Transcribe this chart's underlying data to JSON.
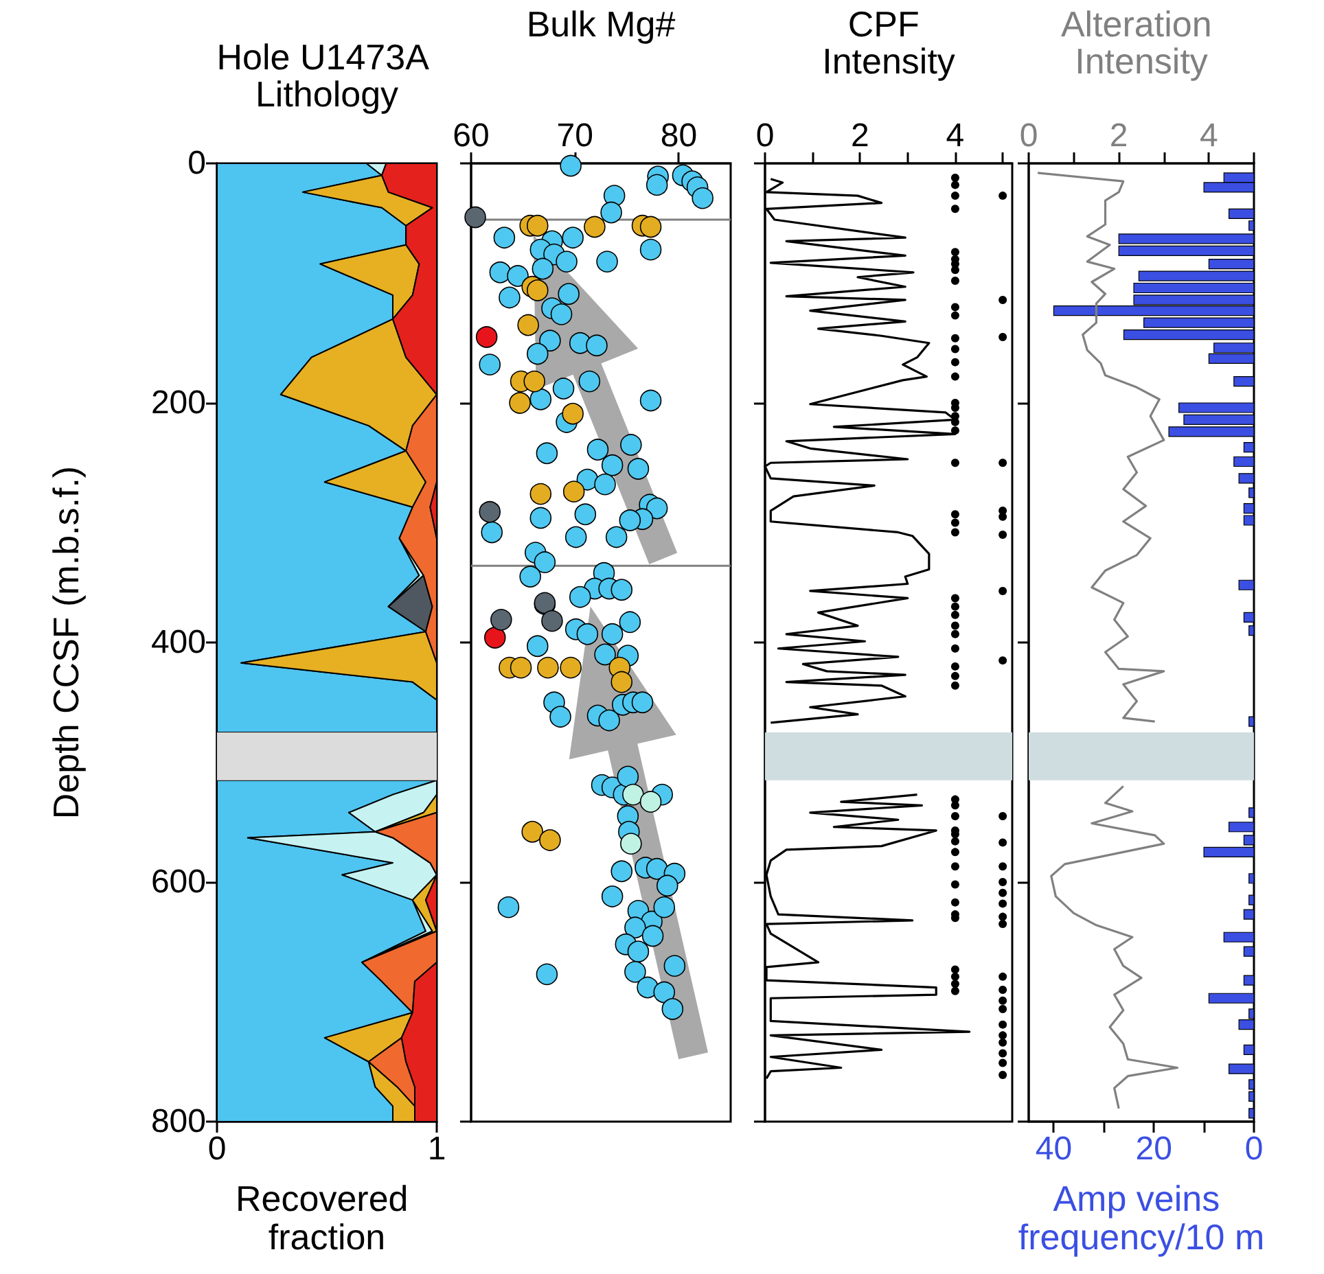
{
  "chart_data": [
    {
      "type": "area",
      "stacked": true,
      "orientation": "horizontal",
      "title": "Hole U1473A Lithology",
      "xlabel": "Recovered fraction",
      "ylabel": "Depth CCSF (m.b.s.f.)",
      "xlim": [
        0,
        1
      ],
      "xticks": [
        0,
        1
      ],
      "ylim": [
        800,
        0
      ],
      "yticks": [
        0,
        200,
        400,
        600,
        800
      ],
      "x": [
        0,
        10,
        24,
        37,
        52,
        68,
        84,
        110,
        130,
        162,
        193,
        219,
        240,
        266,
        287,
        313,
        344,
        370,
        391,
        417,
        433,
        448,
        475,
        495,
        515,
        527,
        542,
        558,
        563,
        584,
        594,
        615,
        641,
        667,
        683,
        709,
        730,
        750,
        771,
        787,
        800
      ],
      "series": [
        {
          "color": "#4ec4f0",
          "values": [
            0.68,
            0.75,
            0.39,
            0.75,
            0.86,
            0.86,
            0.47,
            0.8,
            0.8,
            0.43,
            0.29,
            0.69,
            0.86,
            0.49,
            0.89,
            0.83,
            0.92,
            0.78,
            0.95,
            0.11,
            0.89,
            1,
            1,
            null,
            1,
            0.8,
            0.6,
            0.72,
            0.14,
            0.8,
            0.57,
            0.89,
            0.95,
            0.66,
            0.75,
            0.89,
            0.49,
            0.69,
            0.72,
            0.8,
            0.8
          ]
        },
        {
          "color": "#c6f2f2",
          "values": [
            0.09,
            0,
            null,
            null,
            null,
            null,
            null,
            null,
            null,
            null,
            null,
            null,
            null,
            null,
            null,
            0,
            0.02,
            0,
            null,
            null,
            null,
            null,
            null,
            null,
            0,
            0.2,
            0.34,
            0,
            0.66,
            0.17,
            0.43,
            0,
            0.03,
            0,
            null,
            null,
            null,
            null,
            null,
            null,
            null
          ]
        },
        {
          "color": "#4f5860",
          "values": [
            null,
            null,
            null,
            null,
            null,
            null,
            null,
            null,
            null,
            null,
            null,
            null,
            null,
            null,
            null,
            null,
            0,
            0.2,
            0,
            null,
            null,
            null,
            null,
            null,
            null,
            null,
            null,
            null,
            null,
            null,
            null,
            null,
            null,
            null,
            null,
            null,
            null,
            null,
            null,
            null,
            null
          ]
        },
        {
          "color": "#e6b022",
          "values": [
            null,
            0,
            0.39,
            0.23,
            0,
            0,
            0.45,
            0.09,
            0,
            0.43,
            0.71,
            0.2,
            0,
            0.46,
            0,
            null,
            null,
            null,
            0,
            0.89,
            0.11,
            0,
            null,
            null,
            null,
            0,
            0.06,
            0,
            null,
            null,
            0,
            0.06,
            0.02,
            0,
            null,
            0,
            0.35,
            0,
            0.1,
            0.1,
            0.1
          ]
        },
        {
          "color": "#f0692f",
          "values": [
            null,
            null,
            null,
            null,
            null,
            null,
            null,
            null,
            null,
            null,
            0,
            0.11,
            0.14,
            0.05,
            0.08,
            0.17,
            0.06,
            0.02,
            0.05,
            0,
            null,
            null,
            null,
            null,
            null,
            null,
            0,
            0.28,
            0.2,
            0.03,
            0,
            null,
            0,
            0.34,
            0.15,
            0,
            0,
            0.17,
            0.08,
            0,
            null
          ]
        },
        {
          "color": "#e5211d",
          "values": [
            0.23,
            0.25,
            0.22,
            0.02,
            0.14,
            0.14,
            0.08,
            0.11,
            0.2,
            0.14,
            0,
            null,
            null,
            0,
            0.03,
            0,
            null,
            null,
            null,
            null,
            null,
            null,
            null,
            null,
            null,
            null,
            null,
            null,
            null,
            null,
            0,
            0.05,
            0,
            0,
            0.1,
            0.11,
            0.16,
            0.14,
            0.1,
            0.1,
            0.1
          ]
        }
      ],
      "bands": [
        {
          "axis": "y",
          "from": 475,
          "to": 515,
          "color": "#dcdcdc"
        }
      ]
    },
    {
      "type": "scatter",
      "orientation": "horizontal",
      "title": "Bulk Mg#",
      "x2lim": [
        60,
        85
      ],
      "x2ticks": [
        60,
        70,
        80
      ],
      "ylim": [
        800,
        0
      ],
      "yticks": [
        0,
        200,
        400,
        600,
        800
      ],
      "tick_labels": "x",
      "marker": "circle",
      "series": [
        {
          "color": "#4ec8f0",
          "axis": "x2",
          "x": [
            2,
            11,
            10,
            15,
            20,
            29,
            18,
            27,
            41,
            62,
            65,
            62,
            72,
            82,
            76,
            82,
            72,
            91,
            94,
            112,
            88,
            109,
            121,
            126,
            150,
            152,
            148,
            159,
            168,
            182,
            188,
            197,
            198,
            216,
            242,
            239,
            235,
            255,
            252,
            264,
            268,
            285,
            288,
            297,
            298,
            308,
            296,
            293,
            312,
            312,
            325,
            333,
            345,
            342,
            355,
            362,
            355,
            356,
            368,
            383,
            389,
            393,
            393,
            410,
            411,
            403,
            450,
            462,
            461,
            465,
            452,
            450,
            450,
            519,
            521,
            527,
            527,
            545,
            558,
            591,
            588,
            589,
            593,
            603,
            612,
            624,
            633,
            621,
            638,
            645,
            652,
            658,
            670,
            675,
            688,
            692,
            706,
            621,
            677,
            512
          ],
          "values": [
            69.6,
            78.0,
            80.4,
            81.3,
            81.8,
            82.3,
            77.9,
            73.8,
            73.5,
            63.2,
            67.8,
            69.8,
            66.7,
            73.1,
            68.0,
            69.2,
            77.3,
            62.8,
            64.5,
            63.7,
            66.9,
            69.4,
            67.8,
            68.7,
            70.5,
            72.1,
            67.6,
            66.4,
            61.8,
            71.4,
            68.9,
            66.7,
            77.3,
            69.2,
            67.3,
            72.2,
            75.4,
            76.1,
            73.6,
            71.2,
            72.9,
            77.2,
            77.9,
            76.5,
            75.3,
            62.0,
            66.7,
            71.0,
            70.1,
            74.0,
            66.2,
            67.1,
            65.7,
            72.8,
            71.9,
            70.5,
            73.3,
            74.5,
            67.1,
            75.3,
            70.1,
            71.2,
            73.6,
            72.9,
            75.1,
            66.4,
            68.0,
            68.6,
            72.2,
            73.3,
            74.6,
            75.6,
            76.5,
            72.6,
            73.6,
            74.7,
            78.4,
            75.1,
            75.2,
            74.5,
            76.8,
            77.9,
            79.6,
            78.9,
            73.6,
            76.1,
            77.4,
            78.6,
            75.8,
            77.5,
            74.9,
            76.1,
            79.6,
            75.8,
            77.0,
            78.6,
            79.4,
            63.6,
            67.3,
            75.1
          ]
        },
        {
          "color": "#e4ad21",
          "axis": "x2",
          "x": [
            52,
            52,
            53,
            52,
            53,
            103,
            106,
            135,
            182,
            182,
            200,
            209,
            276,
            274,
            421,
            421,
            421,
            421,
            421,
            433,
            558,
            565
          ],
          "values": [
            65.7,
            66.4,
            71.9,
            76.5,
            77.3,
            65.9,
            66.4,
            65.5,
            64.8,
            66.1,
            64.7,
            69.8,
            66.7,
            69.9,
            63.7,
            64.8,
            67.4,
            69.6,
            74.3,
            74.5,
            65.9,
            67.6
          ]
        },
        {
          "color": "#e8141c",
          "axis": "x2",
          "x": [
            145,
            396
          ],
          "values": [
            61.5,
            62.3
          ]
        },
        {
          "color": "#5a6670",
          "axis": "x2",
          "x": [
            45,
            291,
            367,
            382,
            381
          ],
          "values": [
            60.4,
            61.8,
            67.1,
            67.8,
            62.9
          ]
        },
        {
          "color": "#bff2e2",
          "axis": "x2",
          "x": [
            527,
            533,
            568
          ],
          "values": [
            75.6,
            77.3,
            75.4
          ]
        }
      ],
      "ref_lines": [
        {
          "axis": "y",
          "value": 47,
          "color": "#808080"
        },
        {
          "axis": "y",
          "value": 336,
          "color": "#808080"
        }
      ]
    },
    {
      "type": "line",
      "orientation": "horizontal",
      "title": "CPF Intensity",
      "x2lim": [
        0,
        5.2
      ],
      "x2ticks": [
        0,
        {
          "value": 1,
          "label": null
        },
        2,
        {
          "value": 3,
          "label": null
        },
        4,
        {
          "value": 5,
          "label": null
        }
      ],
      "ylim": [
        800,
        0
      ],
      "yticks": [
        0,
        200,
        400,
        600,
        800
      ],
      "tick_labels": "x",
      "series": [
        {
          "color": "#000000",
          "axis": "x2",
          "marker": "none",
          "x": [
            13,
            16,
            24,
            27,
            33,
            38,
            47,
            62,
            65,
            77,
            83,
            91,
            95,
            103,
            111,
            114,
            123,
            132,
            138,
            144,
            150,
            162,
            168,
            178,
            181,
            201,
            208,
            214,
            220,
            226,
            232,
            238,
            247,
            250,
            253,
            263,
            269,
            278,
            290,
            299,
            308,
            311,
            326,
            339,
            345,
            351,
            357,
            363,
            375,
            386,
            393,
            399,
            405,
            412,
            418,
            424,
            427,
            433,
            436,
            445,
            454,
            460,
            467,
            495,
            527,
            533,
            536,
            542,
            548,
            554,
            557,
            570,
            573,
            582,
            594,
            612,
            627,
            632,
            635,
            643,
            667,
            671,
            682,
            688,
            694,
            697,
            716,
            725,
            728,
            740,
            746,
            755,
            758,
            764
          ],
          "values": [
            0.12,
            0.37,
            0.03,
            1.95,
            2.45,
            0.03,
            0.2,
            2.95,
            0.45,
            2.95,
            0.12,
            3.12,
            1.95,
            2.95,
            0.45,
            2.95,
            0.95,
            2.95,
            1.12,
            2.45,
            3.45,
            3.2,
            2.9,
            3.4,
            2.9,
            0.95,
            3.8,
            4.0,
            1.45,
            4.0,
            0.45,
            0.95,
            3.0,
            0.12,
            0,
            0.12,
            2.3,
            0.6,
            0.12,
            0.12,
            2.8,
            3.1,
            3.45,
            3.45,
            2.95,
            3.0,
            0.95,
            3.0,
            1.12,
            1.95,
            0.45,
            2.1,
            0.28,
            2.8,
            0.8,
            1.3,
            2.95,
            0.45,
            2.45,
            2.95,
            0.95,
            1.95,
            0.12,
            null,
            3.2,
            1.6,
            3.3,
            0.95,
            2.8,
            1.45,
            3.6,
            2.45,
            0.45,
            0.12,
            0.03,
            0.12,
            0.28,
            3.1,
            0.03,
            0.12,
            1.12,
            0.03,
            0.03,
            3.6,
            3.6,
            0.12,
            0.12,
            4.3,
            0.12,
            2.45,
            0.12,
            1.6,
            0.12,
            0.03
          ]
        },
        {
          "type": "scatter",
          "color": "#000000",
          "axis": "x2",
          "marker": "circle",
          "x": [
            12,
            18,
            27,
            38,
            74,
            80,
            84,
            89,
            98,
            120,
            127,
            146,
            155,
            166,
            178,
            200,
            204,
            211,
            216,
            223,
            250,
            293,
            300,
            308,
            363,
            370,
            377,
            386,
            393,
            405,
            420,
            428,
            436,
            531,
            536,
            545,
            557,
            560,
            566,
            575,
            587,
            602,
            617,
            627,
            630,
            673,
            679,
            685,
            691
          ],
          "values": [
            4,
            4,
            4,
            4,
            4,
            4,
            4,
            4,
            4,
            4,
            4,
            4,
            4,
            4,
            4,
            4,
            4,
            4,
            4,
            4,
            4,
            4,
            4,
            4,
            4,
            4,
            4,
            4,
            4,
            4,
            4,
            4,
            4,
            4,
            4,
            4,
            4,
            4,
            4,
            4,
            4,
            4,
            4,
            4,
            4,
            4,
            4,
            4,
            4
          ]
        },
        {
          "type": "scatter",
          "color": "#000000",
          "axis": "x2",
          "marker": "circle",
          "x": [
            27,
            114,
            145,
            250,
            290,
            295,
            310,
            357,
            415,
            545,
            567,
            587,
            600,
            609,
            618,
            629,
            635,
            679,
            690,
            699,
            706,
            719,
            728,
            734,
            743,
            751,
            761
          ],
          "values": [
            5,
            5,
            5,
            5,
            5,
            5,
            5,
            5,
            5,
            5,
            5,
            5,
            5,
            5,
            5,
            5,
            5,
            5,
            5,
            5,
            5,
            5,
            5,
            5,
            5,
            5,
            5
          ]
        }
      ],
      "bands": [
        {
          "axis": "y",
          "from": 475,
          "to": 515,
          "color": "#cfdde0"
        }
      ]
    },
    {
      "type": "line",
      "orientation": "horizontal",
      "title": "Alteration Intensity",
      "xlabel": "Amp veins frequency/10 m",
      "xlim": [
        45,
        0
      ],
      "xticks": [
        40,
        {
          "value": 30,
          "label": null
        },
        20,
        {
          "value": 10,
          "label": null
        },
        0
      ],
      "x2lim": [
        0,
        5
      ],
      "x2ticks": [
        0,
        {
          "value": 1,
          "label": null
        },
        2,
        {
          "value": 3,
          "label": null
        },
        4,
        {
          "value": 5,
          "label": null
        }
      ],
      "ylim": [
        800,
        0
      ],
      "yticks": [
        0,
        200,
        400,
        600,
        800
      ],
      "tick_labels": "x",
      "series": [
        {
          "color": "#808080",
          "axis": "x2",
          "marker": "none",
          "x": [
            8,
            15,
            24,
            31,
            39,
            51,
            61,
            68,
            82,
            88,
            99,
            109,
            117,
            133,
            143,
            156,
            167,
            177,
            187,
            197,
            211,
            231,
            245,
            258,
            272,
            286,
            299,
            313,
            327,
            340,
            354,
            367,
            381,
            395,
            408,
            422,
            424,
            435,
            449,
            463,
            466,
            495,
            520,
            534,
            541,
            551,
            561,
            568,
            585,
            595,
            612,
            626,
            636,
            646,
            656,
            670,
            680,
            694,
            707,
            721,
            735,
            748,
            755,
            762,
            772,
            789
          ],
          "values": [
            0.2,
            2.1,
            2.0,
            1.7,
            1.7,
            1.7,
            1.3,
            1.8,
            1.3,
            1.9,
            1.4,
            1.7,
            1.5,
            1.5,
            1.2,
            1.3,
            1.6,
            1.7,
            2.4,
            2.9,
            2.7,
            3.0,
            2.2,
            2.4,
            2.1,
            2.6,
            2.1,
            2.7,
            2.4,
            1.7,
            1.4,
            2.1,
            1.9,
            2.2,
            1.7,
            2.0,
            3.0,
            2.1,
            2.4,
            2.1,
            2.8,
            null,
            2.1,
            1.7,
            2.3,
            1.4,
            2.8,
            3.0,
            0.8,
            0.5,
            0.6,
            1.0,
            1.5,
            2.3,
            1.9,
            2.1,
            2.5,
            1.9,
            2.1,
            1.8,
            2.1,
            2.2,
            3.3,
            2.2,
            1.9,
            2.0
          ]
        },
        {
          "type": "bar",
          "color": "#3b4fe3",
          "x": [
            12,
            20,
            42,
            52,
            63,
            73,
            84,
            94,
            104,
            114,
            123,
            133,
            143,
            154,
            163,
            182,
            204,
            214,
            224,
            237,
            249,
            263,
            275,
            288,
            298,
            352,
            379,
            390,
            466,
            542,
            554,
            565,
            575,
            597,
            615,
            627,
            646,
            658,
            682,
            697,
            710,
            719,
            740,
            756,
            769,
            779,
            793
          ],
          "values": [
            6,
            10,
            5,
            1,
            27,
            27,
            9,
            23,
            24,
            24,
            40,
            22,
            26,
            8,
            9,
            4,
            15,
            14,
            17,
            2,
            4,
            3,
            1,
            2,
            2,
            3,
            2,
            1,
            1,
            1,
            5,
            2,
            10,
            1,
            1,
            2,
            6,
            2,
            2,
            9,
            1,
            3,
            2,
            5,
            1,
            1,
            1
          ]
        }
      ],
      "bands": [
        {
          "axis": "y",
          "from": 475,
          "to": 515,
          "color": "#cfdde0"
        }
      ]
    }
  ]
}
